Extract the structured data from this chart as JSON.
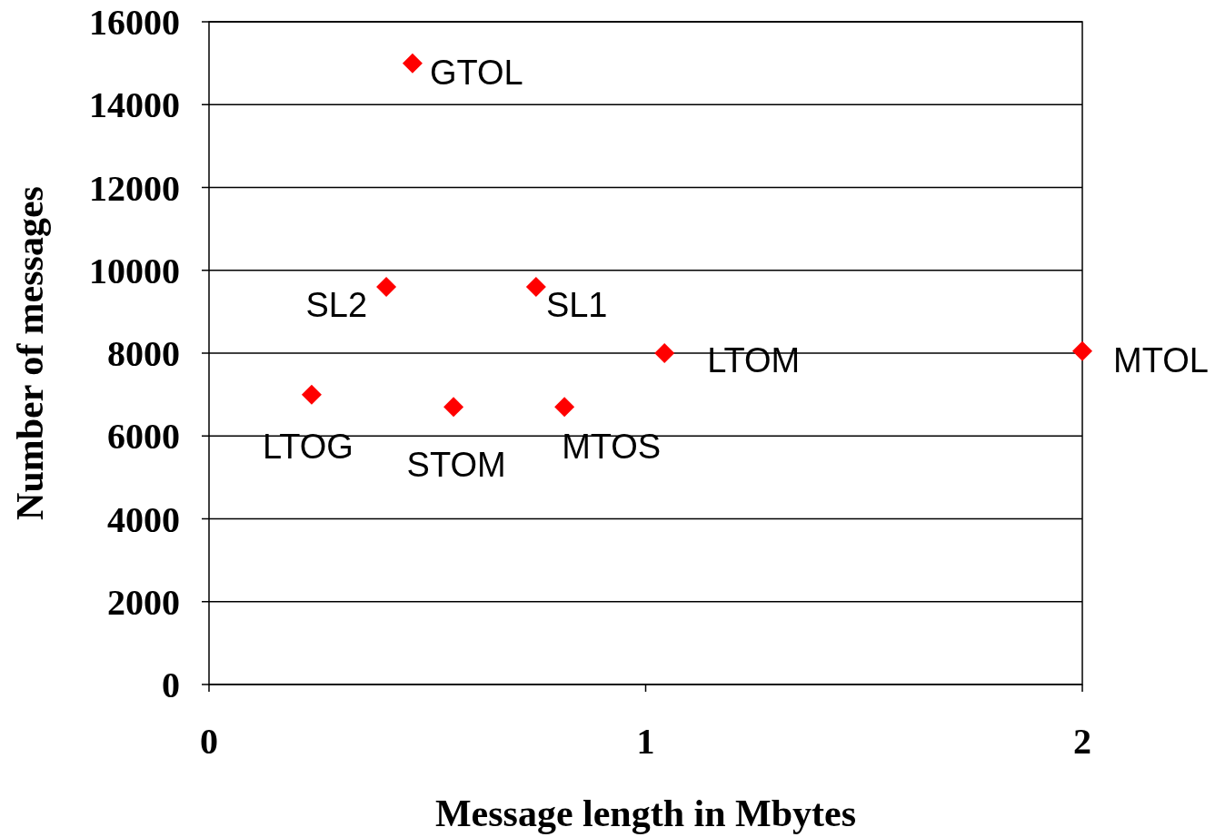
{
  "chart_data": {
    "type": "scatter",
    "xlabel": "Message length in Mbytes",
    "ylabel": "Number of messages",
    "x": [
      0.466,
      0.406,
      0.749,
      1.043,
      2.0,
      0.235,
      0.56,
      0.814
    ],
    "values": [
      15000,
      9600,
      9600,
      8000,
      8050,
      7000,
      6700,
      6700
    ],
    "color": "#ff0000",
    "marker": "diamond",
    "xlim": [
      0,
      2
    ],
    "xticks": [
      0,
      1,
      2
    ],
    "ylim": [
      0,
      16000
    ],
    "yticks": [
      0,
      2000,
      4000,
      6000,
      8000,
      10000,
      12000,
      14000,
      16000
    ],
    "grid": "y",
    "annotations": [
      {
        "text": "GTOL",
        "x": 0.466,
        "y": 15000
      },
      {
        "text": "SL2",
        "x": 0.406,
        "y": 9600
      },
      {
        "text": "SL1",
        "x": 0.749,
        "y": 9600
      },
      {
        "text": "LTOM",
        "x": 1.043,
        "y": 8000
      },
      {
        "text": "MTOL",
        "x": 2.0,
        "y": 8050
      },
      {
        "text": "LTOG",
        "x": 0.235,
        "y": 7000
      },
      {
        "text": "STOM",
        "x": 0.56,
        "y": 6700
      },
      {
        "text": "MTOS",
        "x": 0.814,
        "y": 6700
      }
    ]
  }
}
